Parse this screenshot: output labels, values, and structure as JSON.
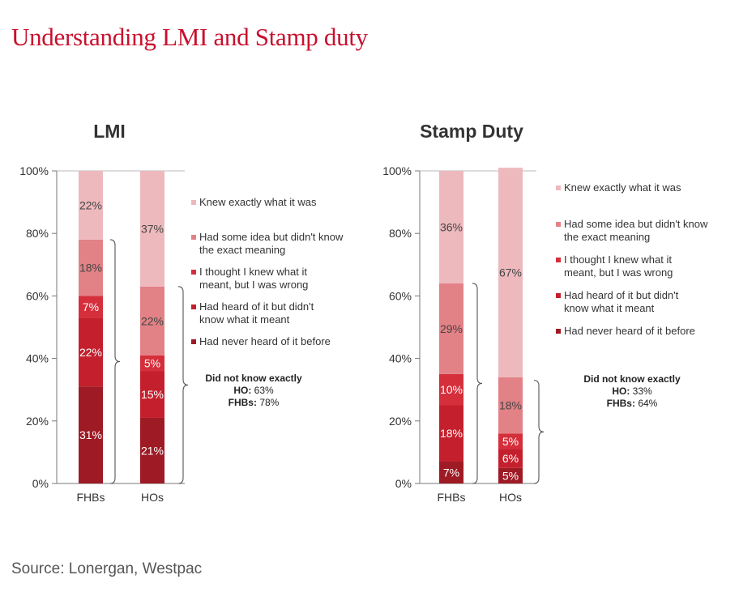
{
  "title": "Understanding LMI and Stamp duty",
  "source": "Source: Lonergan, Westpac",
  "colors": {
    "knew_exactly": "#edb9bd",
    "some_idea": "#e28186",
    "thought_knew": "#d42f3b",
    "heard_not_know": "#c41f2c",
    "never_heard": "#9e1a24",
    "title": "#c8102e"
  },
  "chart_data": [
    {
      "type": "bar",
      "stacked": true,
      "title": "LMI",
      "categories": [
        "FHBs",
        "HOs"
      ],
      "ylim": [
        0,
        100
      ],
      "yticks": [
        "0%",
        "20%",
        "40%",
        "60%",
        "80%",
        "100%"
      ],
      "legend_position": "right",
      "series": [
        {
          "name": "Had never heard of it before",
          "values": [
            31,
            21
          ],
          "labels": [
            "31%",
            "21%"
          ]
        },
        {
          "name": "Had heard of it but didn't know what it meant",
          "values": [
            22,
            15
          ],
          "labels": [
            "22%",
            "15%"
          ]
        },
        {
          "name": "I thought I knew what it meant, but I was wrong",
          "values": [
            7,
            5
          ],
          "labels": [
            "7%",
            "5%"
          ]
        },
        {
          "name": "Had some idea but didn't know the exact meaning",
          "values": [
            18,
            22
          ],
          "labels": [
            "18%",
            "22%"
          ]
        },
        {
          "name": "Knew exactly what it was",
          "values": [
            22,
            37
          ],
          "labels": [
            "22%",
            "37%"
          ]
        }
      ],
      "annotation": {
        "heading": "Did not know exactly",
        "ho_label": "HO:",
        "ho_value": "63%",
        "fhb_label": "FHBs:",
        "fhb_value": "78%"
      }
    },
    {
      "type": "bar",
      "stacked": true,
      "title": "Stamp Duty",
      "categories": [
        "FHBs",
        "HOs"
      ],
      "ylim": [
        0,
        100
      ],
      "yticks": [
        "0%",
        "20%",
        "40%",
        "60%",
        "80%",
        "100%"
      ],
      "legend_position": "right",
      "series": [
        {
          "name": "Had never heard of it before",
          "values": [
            7,
            5
          ],
          "labels": [
            "7%",
            "5%"
          ]
        },
        {
          "name": "Had heard of it but didn't know what it meant",
          "values": [
            18,
            6
          ],
          "labels": [
            "18%",
            "6%"
          ]
        },
        {
          "name": "I thought I knew what it meant, but I was wrong",
          "values": [
            10,
            5
          ],
          "labels": [
            "10%",
            "5%"
          ]
        },
        {
          "name": "Had some idea but didn't know the exact meaning",
          "values": [
            29,
            18
          ],
          "labels": [
            "29%",
            "18%"
          ]
        },
        {
          "name": "Knew exactly what it was",
          "values": [
            36,
            67
          ],
          "labels": [
            "36%",
            "67%"
          ]
        }
      ],
      "annotation": {
        "heading": "Did not know exactly",
        "ho_label": "HO:",
        "ho_value": "33%",
        "fhb_label": "FHBs:",
        "fhb_value": "64%"
      }
    }
  ]
}
